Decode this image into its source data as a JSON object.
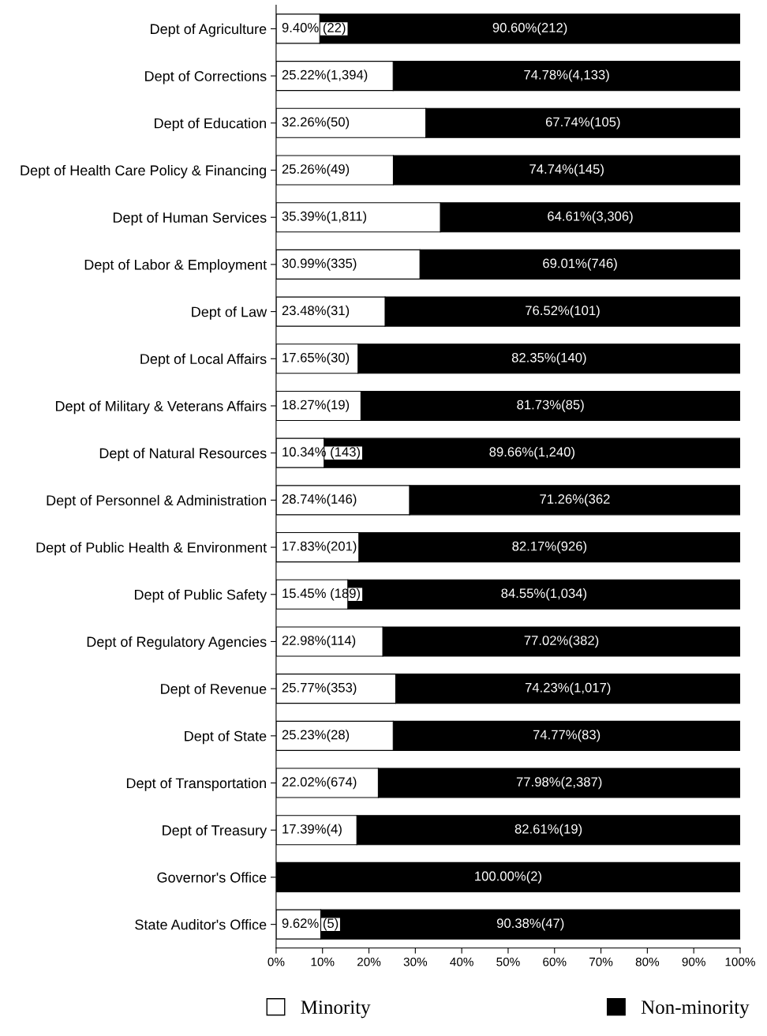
{
  "chart_data": {
    "type": "bar",
    "orientation": "horizontal",
    "stacked": true,
    "categories": [
      "Dept of Agriculture",
      "Dept of Corrections",
      "Dept of Education",
      "Dept of Health Care Policy & Financing",
      "Dept of Human Services",
      "Dept of Labor & Employment",
      "Dept of Law",
      "Dept of Local Affairs",
      "Dept of Military & Veterans Affairs",
      "Dept of Natural Resources",
      "Dept of Personnel & Administration",
      "Dept of Public Health & Environment",
      "Dept of Public Safety",
      "Dept of Regulatory Agencies",
      "Dept of Revenue",
      "Dept of State",
      "Dept of Transportation",
      "Dept of Treasury",
      "Governor's Office",
      "State Auditor's Office"
    ],
    "series": [
      {
        "name": "Minority",
        "color": "#ffffff",
        "values": [
          9.4,
          25.22,
          32.26,
          25.26,
          35.39,
          30.99,
          23.48,
          17.65,
          18.27,
          10.34,
          28.74,
          17.83,
          15.45,
          22.98,
          25.77,
          25.23,
          22.02,
          17.39,
          0,
          9.62
        ],
        "value_labels": [
          "9.40% (22)",
          "25.22%(1,394)",
          "32.26%(50)",
          "25.26%(49)",
          "35.39%(1,811)",
          "30.99%(335)",
          "23.48%(31)",
          "17.65%(30)",
          "18.27%(19)",
          "10.34% (143)",
          "28.74%(146)",
          "17.83%(201)",
          "15.45% (189)",
          "22.98%(114)",
          "25.77%(353)",
          "25.23%(28)",
          "22.02%(674)",
          "17.39%(4)",
          null,
          "9.62% (5)"
        ]
      },
      {
        "name": "Non-minority",
        "color": "#000000",
        "values": [
          90.6,
          74.78,
          67.74,
          74.74,
          64.61,
          69.01,
          76.52,
          82.35,
          81.73,
          89.66,
          71.26,
          82.17,
          84.55,
          77.02,
          74.23,
          74.77,
          77.98,
          82.61,
          100.0,
          90.38
        ],
        "value_labels": [
          "90.60%(212)",
          "74.78%(4,133)",
          "67.74%(105)",
          "74.74%(145)",
          "64.61%(3,306)",
          "69.01%(746)",
          "76.52%(101)",
          "82.35%(140)",
          "81.73%(85)",
          "89.66%(1,240)",
          "71.26%(362",
          "82.17%(926)",
          "84.55%(1,034)",
          "77.02%(382)",
          "74.23%(1,017)",
          "74.77%(83)",
          "77.98%(2,387)",
          "82.61%(19)",
          "100.00%(2)",
          "90.38%(47)"
        ]
      }
    ],
    "xlim": [
      0,
      100
    ],
    "xticks": [
      {
        "value": 0,
        "label": "0%"
      },
      {
        "value": 10,
        "label": "10%"
      },
      {
        "value": 20,
        "label": "20%"
      },
      {
        "value": 30,
        "label": "30%"
      },
      {
        "value": 40,
        "label": "40%"
      },
      {
        "value": 50,
        "label": "50%"
      },
      {
        "value": 60,
        "label": "60%"
      },
      {
        "value": 70,
        "label": "70%"
      },
      {
        "value": 80,
        "label": "80%"
      },
      {
        "value": 90,
        "label": "90%"
      },
      {
        "value": 100,
        "label": "100%"
      }
    ],
    "grid": false,
    "legend": "bottom"
  }
}
